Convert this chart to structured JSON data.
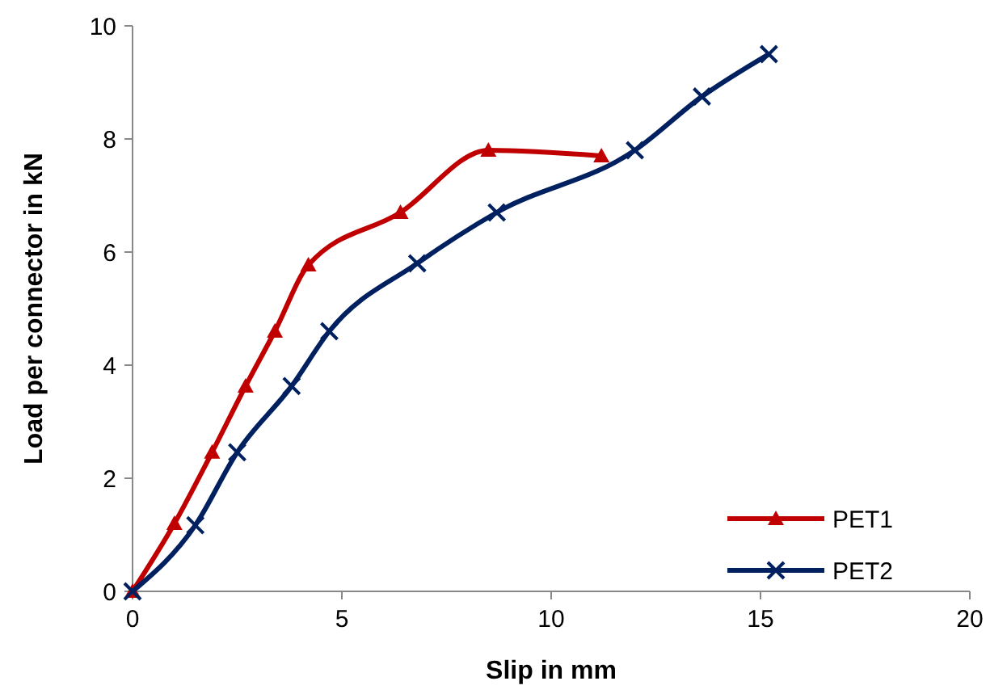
{
  "chart_data": {
    "type": "line",
    "xlabel": "Slip in mm",
    "ylabel": "Load per connector in kN",
    "xlim": [
      0,
      20
    ],
    "xticks": [
      0,
      5,
      10,
      15,
      20
    ],
    "ylim": [
      0,
      10
    ],
    "yticks": [
      0,
      2,
      4,
      6,
      8,
      10
    ],
    "grid": false,
    "legend": "bottom right",
    "line_style": "solid",
    "series": [
      {
        "name": "PET1",
        "color": "#c00000",
        "marker": "triangle",
        "x": [
          0,
          1.0,
          1.9,
          2.7,
          3.4,
          4.2,
          6.4,
          8.5,
          11.2
        ],
        "values": [
          0,
          1.2,
          2.46,
          3.63,
          4.6,
          5.77,
          6.7,
          7.8,
          7.7
        ]
      },
      {
        "name": "PET2",
        "color": "#002060",
        "marker": "cross",
        "x": [
          0,
          1.5,
          2.5,
          3.8,
          4.7,
          6.8,
          8.7,
          12.0,
          13.6,
          15.2
        ],
        "values": [
          0,
          1.17,
          2.46,
          3.63,
          4.6,
          5.8,
          6.7,
          7.8,
          8.75,
          9.5
        ]
      }
    ]
  }
}
